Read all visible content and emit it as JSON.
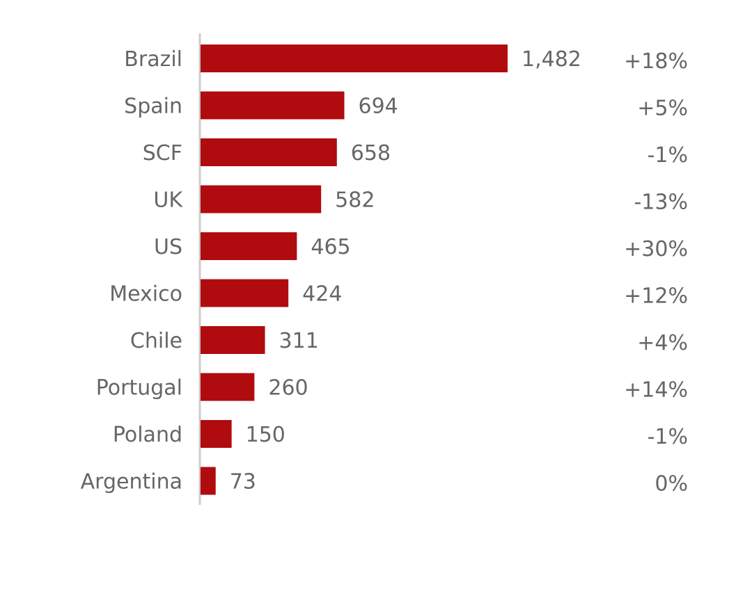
{
  "chart_data": {
    "type": "bar",
    "orientation": "horizontal",
    "categories": [
      "Brazil",
      "Spain",
      "SCF",
      "UK",
      "US",
      "Mexico",
      "Chile",
      "Portugal",
      "Poland",
      "Argentina"
    ],
    "values": [
      1482,
      694,
      658,
      582,
      465,
      424,
      311,
      260,
      150,
      73
    ],
    "value_labels": [
      "1,482",
      "694",
      "658",
      "582",
      "465",
      "424",
      "311",
      "260",
      "150",
      "73"
    ],
    "changes": [
      "+18%",
      "+5%",
      "-1%",
      "-13%",
      "+30%",
      "+12%",
      "+4%",
      "+14%",
      "-1%",
      "0%"
    ],
    "xlim": [
      0,
      1482
    ],
    "grid": false,
    "bar_color": "#b00b0f",
    "axis_color": "#cccccc",
    "text_color": "#666666"
  }
}
